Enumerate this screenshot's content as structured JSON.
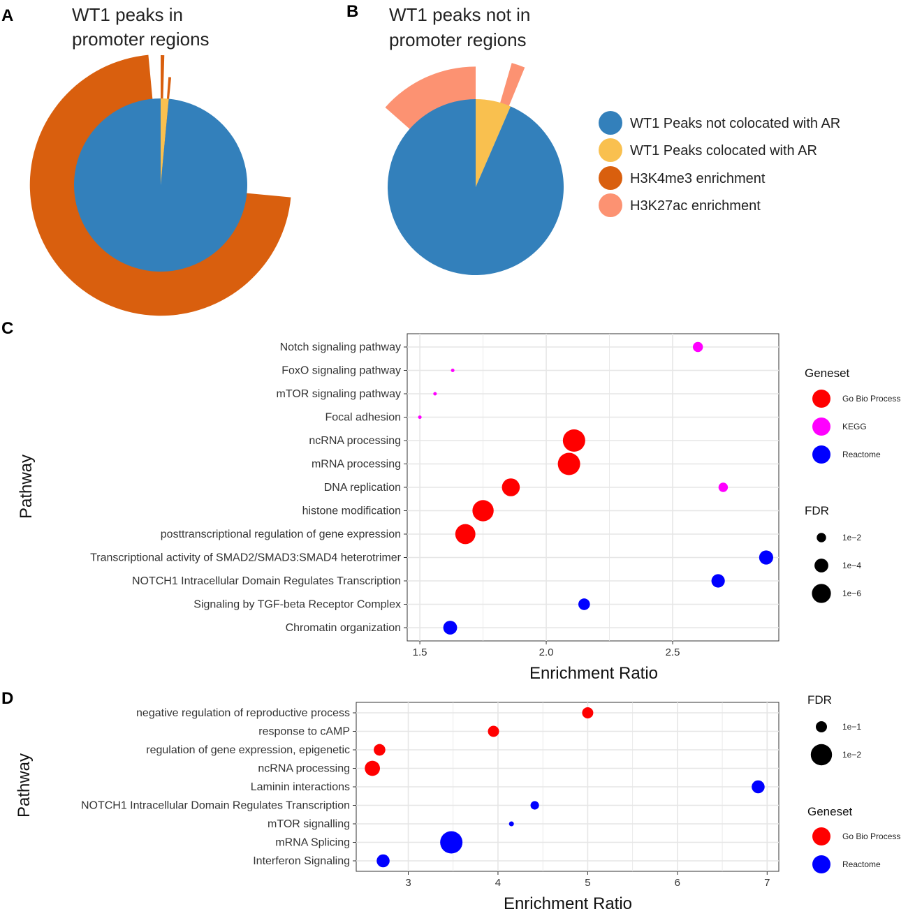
{
  "panels": {
    "a": {
      "letter": "A",
      "title_line1": "WT1 peaks in",
      "title_line2": "promoter regions",
      "inner_pie": [
        {
          "name": "WT1 Peaks colocated with AR",
          "share": 0.015,
          "color": "#F9C04F"
        },
        {
          "name": "WT1 Peaks not colocated with AR",
          "share": 0.985,
          "color": "#3380BB"
        }
      ],
      "outer_ring": [
        {
          "name": "H3K4me3 enrichment",
          "start": 0.0,
          "end": 0.0045,
          "level": 1.5
        },
        {
          "name": "H3K4me3 enrichment",
          "start": 0.0115,
          "end": 0.0155,
          "level": 1.25
        },
        {
          "name": "H3K4me3 enrichment",
          "start": 0.265,
          "end": 0.985,
          "level": 1.51
        }
      ]
    },
    "b": {
      "letter": "B",
      "title_line1": "WT1 peaks not in",
      "title_line2": "promoter regions",
      "inner_pie": [
        {
          "name": "WT1 Peaks colocated with AR",
          "share": 0.065,
          "color": "#F9C04F"
        },
        {
          "name": "WT1 Peaks not colocated with AR",
          "share": 0.935,
          "color": "#3380BB"
        }
      ],
      "outer_ring": [
        {
          "name": "H3K27ac enrichment",
          "start": 0.045,
          "end": 0.062,
          "level": 1.47
        },
        {
          "name": "H3K27ac enrichment",
          "start": 0.865,
          "end": 1.0,
          "level": 1.37
        }
      ]
    },
    "c": {
      "letter": "C"
    },
    "d": {
      "letter": "D"
    }
  },
  "pie_legend": {
    "items": [
      {
        "label": "WT1 Peaks not colocated with AR",
        "color": "#3380BB"
      },
      {
        "label": "WT1 Peaks colocated with AR",
        "color": "#F9C04F"
      },
      {
        "label": "H3K4me3 enrichment",
        "color": "#D95F0E"
      },
      {
        "label": "H3K27ac enrichment",
        "color": "#FC9272"
      }
    ]
  },
  "colors": {
    "go_bio_process": "#FF0000",
    "kegg": "#FF00FF",
    "reactome": "#0000FF",
    "grid": "#E6E6E6",
    "axis": "#333333"
  },
  "chart_data": [
    {
      "type": "scatter",
      "panel": "C",
      "xlabel": "Enrichment Ratio",
      "ylabel": "Pathway",
      "xlim": [
        1.45,
        2.92
      ],
      "xticks": [
        1.5,
        2.0,
        2.5
      ],
      "xtick_labels": [
        "1.5",
        "2.0",
        "2.5"
      ],
      "grid": true,
      "categories": [
        "Notch signaling pathway",
        "FoxO signaling pathway",
        "mTOR signaling pathway",
        "Focal adhesion",
        "ncRNA processing",
        "mRNA processing",
        "DNA replication",
        "histone modification",
        "posttranscriptional regulation of gene expression",
        "Transcriptional activity of SMAD2/SMAD3:SMAD4 heterotrimer",
        "NOTCH1 Intracellular Domain Regulates Transcription",
        "Signaling by TGF-beta Receptor Complex",
        "Chromatin organization"
      ],
      "points": [
        {
          "pathway": "Notch signaling pathway",
          "x": 2.6,
          "geneset": "KEGG",
          "size": 0.45
        },
        {
          "pathway": "DNA replication",
          "x": 2.7,
          "geneset": "KEGG",
          "size": 0.42
        },
        {
          "pathway": "FoxO signaling pathway",
          "x": 1.63,
          "geneset": "KEGG",
          "size": 0.14
        },
        {
          "pathway": "mTOR signaling pathway",
          "x": 1.56,
          "geneset": "KEGG",
          "size": 0.12
        },
        {
          "pathway": "Focal adhesion",
          "x": 1.5,
          "geneset": "KEGG",
          "size": 0.16
        },
        {
          "pathway": "ncRNA processing",
          "x": 2.11,
          "geneset": "Go Bio Process",
          "size": 1.0
        },
        {
          "pathway": "mRNA processing",
          "x": 2.09,
          "geneset": "Go Bio Process",
          "size": 1.0
        },
        {
          "pathway": "DNA replication",
          "x": 1.86,
          "geneset": "Go Bio Process",
          "size": 0.8
        },
        {
          "pathway": "histone modification",
          "x": 1.75,
          "geneset": "Go Bio Process",
          "size": 0.95
        },
        {
          "pathway": "posttranscriptional regulation of gene expression",
          "x": 1.68,
          "geneset": "Go Bio Process",
          "size": 0.9
        },
        {
          "pathway": "Transcriptional activity of SMAD2/SMAD3:SMAD4 heterotrimer",
          "x": 2.87,
          "geneset": "Reactome",
          "size": 0.63
        },
        {
          "pathway": "NOTCH1 Intracellular Domain Regulates Transcription",
          "x": 2.68,
          "geneset": "Reactome",
          "size": 0.6
        },
        {
          "pathway": "Signaling by TGF-beta Receptor Complex",
          "x": 2.15,
          "geneset": "Reactome",
          "size": 0.52
        },
        {
          "pathway": "Chromatin organization",
          "x": 1.62,
          "geneset": "Reactome",
          "size": 0.62
        }
      ],
      "legend_geneset": {
        "title": "Geneset",
        "items": [
          {
            "label": "Go Bio Process",
            "color": "#FF0000"
          },
          {
            "label": "KEGG",
            "color": "#FF00FF"
          },
          {
            "label": "Reactome",
            "color": "#0000FF"
          }
        ]
      },
      "legend_fdr": {
        "title": "FDR",
        "items": [
          {
            "label": "1e−2",
            "size": 0.42
          },
          {
            "label": "1e−4",
            "size": 0.62
          },
          {
            "label": "1e−6",
            "size": 0.85
          }
        ]
      }
    },
    {
      "type": "scatter",
      "panel": "D",
      "xlabel": "Enrichment Ratio",
      "ylabel": "Pathway",
      "xlim": [
        2.42,
        7.13
      ],
      "xticks": [
        3,
        4,
        5,
        6,
        7
      ],
      "xtick_labels": [
        "3",
        "4",
        "5",
        "6",
        "7"
      ],
      "grid": true,
      "categories": [
        "negative regulation of reproductive process",
        "response to cAMP",
        "regulation of gene expression, epigenetic",
        "ncRNA processing",
        "Laminin interactions",
        "NOTCH1 Intracellular Domain Regulates Transcription",
        "mTOR signalling",
        "mRNA Splicing",
        "Interferon Signaling"
      ],
      "points": [
        {
          "pathway": "negative regulation of reproductive process",
          "x": 5.0,
          "geneset": "Go Bio Process",
          "size": 0.5
        },
        {
          "pathway": "response to cAMP",
          "x": 3.95,
          "geneset": "Go Bio Process",
          "size": 0.5
        },
        {
          "pathway": "regulation of gene expression, epigenetic",
          "x": 2.68,
          "geneset": "Go Bio Process",
          "size": 0.52
        },
        {
          "pathway": "ncRNA processing",
          "x": 2.6,
          "geneset": "Go Bio Process",
          "size": 0.68
        },
        {
          "pathway": "Laminin interactions",
          "x": 6.9,
          "geneset": "Reactome",
          "size": 0.58
        },
        {
          "pathway": "NOTCH1 Intracellular Domain Regulates Transcription",
          "x": 4.41,
          "geneset": "Reactome",
          "size": 0.38
        },
        {
          "pathway": "mTOR signalling",
          "x": 4.15,
          "geneset": "Reactome",
          "size": 0.22
        },
        {
          "pathway": "mRNA Splicing",
          "x": 3.48,
          "geneset": "Reactome",
          "size": 1.0
        },
        {
          "pathway": "Interferon Signaling",
          "x": 2.72,
          "geneset": "Reactome",
          "size": 0.58
        }
      ],
      "legend_fdr": {
        "title": "FDR",
        "items": [
          {
            "label": "1e−1",
            "size": 0.5
          },
          {
            "label": "1e−2",
            "size": 0.95
          }
        ]
      },
      "legend_geneset": {
        "title": "Geneset",
        "items": [
          {
            "label": "Go Bio Process",
            "color": "#FF0000"
          },
          {
            "label": "Reactome",
            "color": "#0000FF"
          }
        ]
      }
    }
  ]
}
